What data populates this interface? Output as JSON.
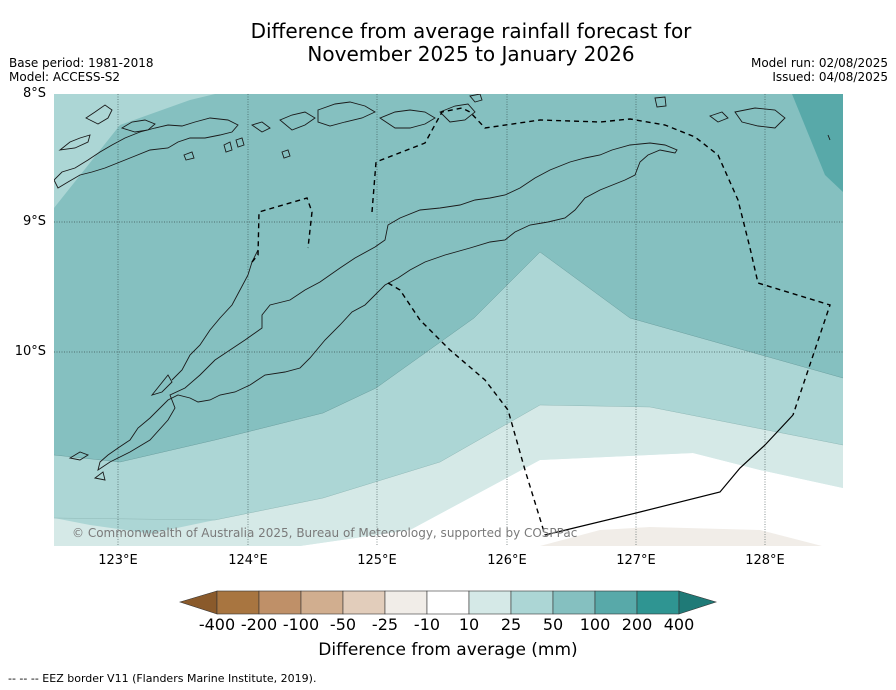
{
  "title_line1": "Difference from average rainfall forecast for",
  "title_line2": "November 2025 to January 2026",
  "base_period": "Base period: 1981-2018",
  "model": "Model: ACCESS-S2",
  "model_run": "Model run: 02/08/2025",
  "issued": "Issued: 04/08/2025",
  "lat_labels": [
    "8°S",
    "9°S",
    "10°S"
  ],
  "lon_labels": [
    "123°E",
    "124°E",
    "125°E",
    "126°E",
    "127°E",
    "128°E"
  ],
  "copyright": "© Commonwealth of Australia 2025, Bureau of Meteorology, supported by COSPPac",
  "colorbar": {
    "ticks": [
      "-400",
      "-200",
      "-100",
      "-50",
      "-25",
      "-10",
      "10",
      "25",
      "50",
      "100",
      "200",
      "400"
    ],
    "label": "Difference from average (mm)",
    "colors": [
      "#8a5a2b",
      "#a87540",
      "#bf9068",
      "#d1ae8f",
      "#e2cdbb",
      "#f1ede8",
      "#ffffff",
      "#d5e9e7",
      "#acd6d5",
      "#85c0c0",
      "#58a9a9",
      "#2f9592",
      "#1f7a77"
    ]
  },
  "footer": "--  --  -- EEZ border V11 (Flanders Marine Institute, 2019).",
  "map": {
    "lat_range": [
      "8°S",
      "11.5°S"
    ],
    "lon_range": [
      "122.5°E",
      "128.6°E"
    ],
    "layers": [
      "rainfall anomaly bands",
      "coastline",
      "EEZ border",
      "graticule"
    ]
  }
}
